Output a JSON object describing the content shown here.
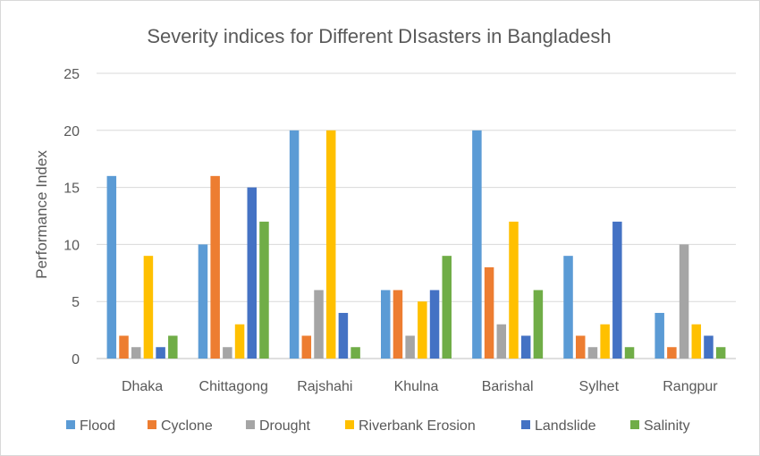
{
  "chart_data": {
    "type": "bar",
    "title": "Severity indices for Different DIsasters in Bangladesh",
    "xlabel": "",
    "ylabel": "Performance Index",
    "ylim": [
      0,
      25
    ],
    "yticks": [
      0,
      5,
      10,
      15,
      20,
      25
    ],
    "grid": true,
    "legend_position": "bottom",
    "categories": [
      "Dhaka",
      "Chittagong",
      "Rajshahi",
      "Khulna",
      "Barishal",
      "Sylhet",
      "Rangpur"
    ],
    "series": [
      {
        "name": "Flood",
        "color": "#5b9bd5",
        "values": [
          16,
          10,
          20,
          6,
          20,
          9,
          4
        ]
      },
      {
        "name": "Cyclone",
        "color": "#ed7d31",
        "values": [
          2,
          16,
          2,
          6,
          8,
          2,
          1
        ]
      },
      {
        "name": "Drought",
        "color": "#a5a5a5",
        "values": [
          1,
          1,
          6,
          2,
          3,
          1,
          10
        ]
      },
      {
        "name": "Riverbank Erosion",
        "color": "#ffc000",
        "values": [
          9,
          3,
          20,
          5,
          12,
          3,
          3
        ]
      },
      {
        "name": "Landslide",
        "color": "#4472c4",
        "values": [
          1,
          15,
          4,
          6,
          2,
          12,
          2
        ]
      },
      {
        "name": "Salinity",
        "color": "#70ad47",
        "values": [
          2,
          12,
          1,
          9,
          6,
          1,
          1
        ]
      }
    ]
  }
}
